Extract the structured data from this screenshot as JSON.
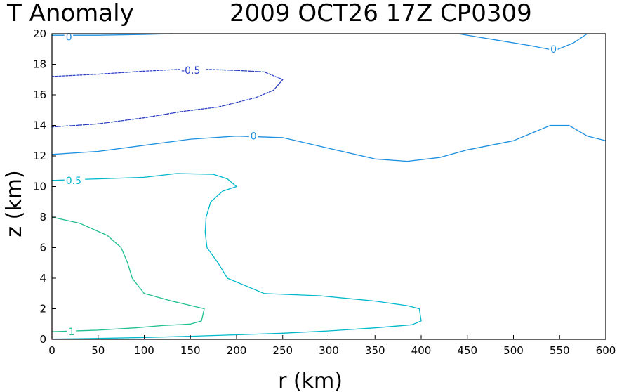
{
  "chart_data": {
    "type": "contour",
    "title_left": "T Anomaly",
    "title_right": "2009 OCT26 17Z CP0309",
    "xlabel": "r (km)",
    "ylabel": "z (km)",
    "xlim": [
      0,
      600
    ],
    "ylim": [
      0,
      20
    ],
    "x_ticks": [
      0,
      50,
      100,
      150,
      200,
      250,
      300,
      350,
      400,
      450,
      500,
      550,
      600
    ],
    "y_ticks": [
      0,
      2,
      4,
      6,
      8,
      10,
      12,
      14,
      16,
      18,
      20
    ],
    "grid": false,
    "contours": [
      {
        "label": "-0.5",
        "dashed": true,
        "color": "#2a3fc8",
        "label_at": [
          140,
          17.6
        ],
        "points": [
          [
            0,
            17.2
          ],
          [
            50,
            17.35
          ],
          [
            100,
            17.55
          ],
          [
            150,
            17.7
          ],
          [
            200,
            17.6
          ],
          [
            230,
            17.5
          ],
          [
            250,
            17.0
          ],
          [
            240,
            16.3
          ],
          [
            220,
            15.8
          ],
          [
            180,
            15.2
          ],
          [
            140,
            14.9
          ],
          [
            100,
            14.5
          ],
          [
            50,
            14.1
          ],
          [
            0,
            13.9
          ]
        ]
      },
      {
        "label": "0",
        "dashed": false,
        "color": "#1e90e0",
        "label_at": [
          15,
          19.8
        ],
        "points": [
          [
            0,
            19.9
          ],
          [
            50,
            19.9
          ],
          [
            100,
            19.95
          ],
          [
            130,
            20.0
          ]
        ]
      },
      {
        "label": "0",
        "dashed": false,
        "color": "#1e90e0",
        "label_at": [
          215,
          13.3
        ],
        "points": [
          [
            0,
            12.1
          ],
          [
            50,
            12.3
          ],
          [
            100,
            12.7
          ],
          [
            150,
            13.1
          ],
          [
            200,
            13.3
          ],
          [
            250,
            13.2
          ],
          [
            300,
            12.5
          ],
          [
            350,
            11.8
          ],
          [
            385,
            11.65
          ],
          [
            420,
            11.9
          ],
          [
            450,
            12.4
          ],
          [
            500,
            13.0
          ],
          [
            540,
            14.0
          ],
          [
            560,
            14.0
          ],
          [
            580,
            13.3
          ],
          [
            600,
            13.0
          ]
        ]
      },
      {
        "label": "0",
        "dashed": false,
        "color": "#1e90e0",
        "label_at": [
          540,
          19.0
        ],
        "points": [
          [
            440,
            20.0
          ],
          [
            480,
            19.6
          ],
          [
            520,
            19.2
          ],
          [
            545,
            18.9
          ],
          [
            565,
            19.4
          ],
          [
            580,
            20.0
          ]
        ]
      },
      {
        "label": "0.5",
        "dashed": false,
        "color": "#00b8cc",
        "label_at": [
          15,
          10.4
        ],
        "points": [
          [
            0,
            10.4
          ],
          [
            50,
            10.5
          ],
          [
            100,
            10.6
          ],
          [
            135,
            10.85
          ],
          [
            175,
            10.8
          ],
          [
            190,
            10.5
          ],
          [
            200,
            10.0
          ],
          [
            185,
            9.7
          ],
          [
            172,
            9.0
          ],
          [
            167,
            8.0
          ],
          [
            166,
            7.0
          ],
          [
            168,
            6.0
          ],
          [
            180,
            5.0
          ],
          [
            190,
            4.0
          ],
          [
            230,
            3.0
          ],
          [
            290,
            2.85
          ],
          [
            350,
            2.5
          ],
          [
            385,
            2.2
          ],
          [
            398,
            2.0
          ],
          [
            400,
            1.2
          ],
          [
            390,
            0.95
          ],
          [
            350,
            0.75
          ],
          [
            300,
            0.55
          ],
          [
            250,
            0.4
          ],
          [
            200,
            0.3
          ],
          [
            150,
            0.2
          ],
          [
            100,
            0.12
          ],
          [
            50,
            0.06
          ],
          [
            0,
            0.02
          ]
        ]
      },
      {
        "label": "1",
        "dashed": false,
        "color": "#1fbf8f",
        "label_at": [
          18,
          0.5
        ],
        "points": [
          [
            0,
            8.0
          ],
          [
            30,
            7.6
          ],
          [
            60,
            6.8
          ],
          [
            75,
            6.0
          ],
          [
            82,
            5.0
          ],
          [
            87,
            4.0
          ],
          [
            100,
            3.0
          ],
          [
            130,
            2.5
          ],
          [
            165,
            2.0
          ],
          [
            162,
            1.2
          ],
          [
            150,
            1.0
          ],
          [
            120,
            0.9
          ],
          [
            90,
            0.75
          ],
          [
            50,
            0.6
          ],
          [
            0,
            0.5
          ]
        ]
      }
    ]
  }
}
